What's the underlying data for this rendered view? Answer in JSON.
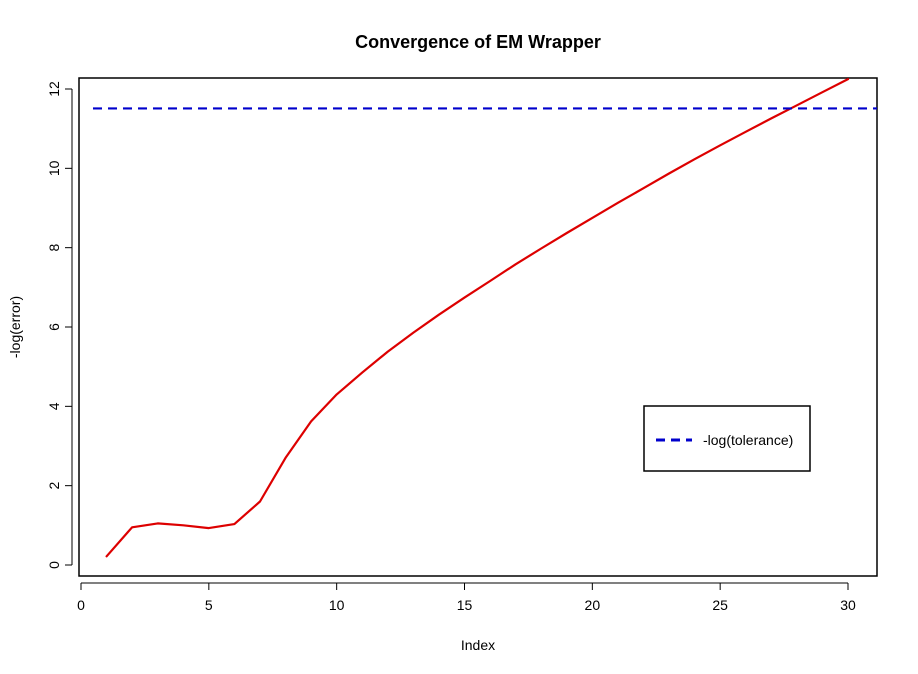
{
  "chart_data": {
    "type": "line",
    "title": "Convergence of EM Wrapper",
    "xlabel": "Index",
    "ylabel": "-log(error)",
    "xlim": [
      0,
      31
    ],
    "ylim": [
      0,
      12
    ],
    "x_ticks": [
      0,
      5,
      10,
      15,
      20,
      25,
      30
    ],
    "y_ticks": [
      0,
      2,
      4,
      6,
      8,
      10,
      12
    ],
    "grid": false,
    "legend": {
      "position": "right",
      "entries": [
        "-log(tolerance)"
      ]
    },
    "series": [
      {
        "color": "#dd0000",
        "style": "solid",
        "x": [
          1,
          2,
          3,
          4,
          5,
          6,
          7,
          8,
          9,
          10,
          11,
          12,
          13,
          14,
          15,
          16,
          17,
          18,
          19,
          20,
          21,
          22,
          23,
          24,
          25,
          26,
          27,
          28,
          29,
          30
        ],
        "y": [
          0.22,
          0.95,
          1.05,
          1.0,
          0.93,
          1.03,
          1.6,
          2.7,
          3.62,
          4.3,
          4.85,
          5.38,
          5.86,
          6.31,
          6.74,
          7.16,
          7.58,
          7.98,
          8.37,
          8.75,
          9.13,
          9.5,
          9.87,
          10.23,
          10.58,
          10.92,
          11.26,
          11.59,
          11.92,
          12.25
        ]
      },
      {
        "name": "-log(tolerance)",
        "color": "#0000cc",
        "style": "dashed",
        "hline": 11.51
      }
    ]
  }
}
